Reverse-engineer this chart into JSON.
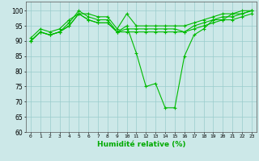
{
  "x": [
    0,
    1,
    2,
    3,
    4,
    5,
    6,
    7,
    8,
    9,
    10,
    11,
    12,
    13,
    14,
    15,
    16,
    17,
    18,
    19,
    20,
    21,
    22,
    23
  ],
  "lines": [
    [
      90,
      93,
      92,
      93,
      96,
      100,
      98,
      97,
      97,
      93,
      95,
      86,
      75,
      76,
      68,
      68,
      85,
      92,
      94,
      97,
      97,
      99,
      99,
      100
    ],
    [
      91,
      94,
      93,
      94,
      97,
      99,
      99,
      98,
      98,
      94,
      99,
      95,
      95,
      95,
      95,
      95,
      95,
      96,
      97,
      98,
      99,
      99,
      100,
      100
    ],
    [
      90,
      93,
      92,
      93,
      95,
      99,
      97,
      96,
      96,
      93,
      94,
      94,
      94,
      94,
      94,
      94,
      93,
      95,
      96,
      97,
      98,
      98,
      99,
      100
    ],
    [
      90,
      93,
      92,
      93,
      95,
      99,
      97,
      96,
      96,
      93,
      93,
      93,
      93,
      93,
      93,
      93,
      93,
      94,
      95,
      96,
      97,
      97,
      98,
      99
    ]
  ],
  "line_color": "#00bb00",
  "bg_color": "#cce8e8",
  "grid_color": "#99cccc",
  "label_color": "#00aa00",
  "ylim": [
    60,
    103
  ],
  "yticks": [
    60,
    65,
    70,
    75,
    80,
    85,
    90,
    95,
    100
  ],
  "xlabel": "Humidité relative (%)"
}
